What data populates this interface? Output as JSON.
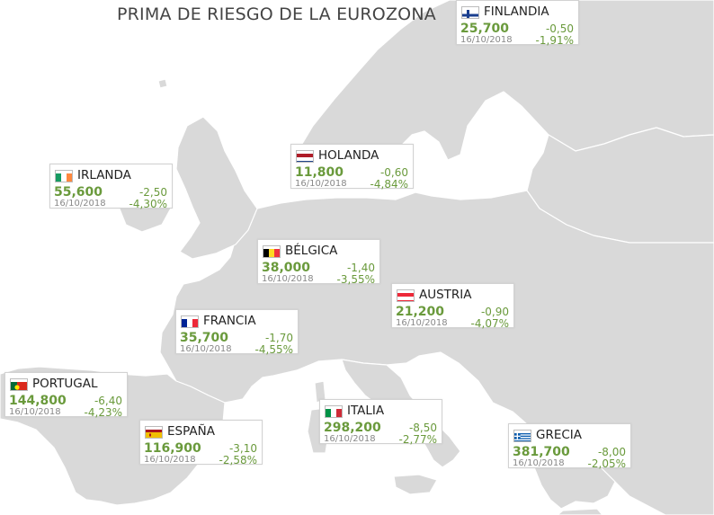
{
  "title": "PRIMA DE RIESGO DE LA EUROZONA",
  "colors": {
    "sea": "#ffffff",
    "land": "#d9d9d9",
    "border": "#ffffff",
    "value": "#6a9a3c",
    "card_border": "#d2d2d2"
  },
  "countries": [
    {
      "name": "FINLANDIA",
      "flag_icon": "finland-flag-icon",
      "value": "25,700",
      "change": "-0,50",
      "date": "16/10/2018",
      "pct": "-1,91%"
    },
    {
      "name": "HOLANDA",
      "flag_icon": "netherlands-flag-icon",
      "value": "11,800",
      "change": "-0,60",
      "date": "16/10/2018",
      "pct": "-4,84%"
    },
    {
      "name": "IRLANDA",
      "flag_icon": "ireland-flag-icon",
      "value": "55,600",
      "change": "-2,50",
      "date": "16/10/2018",
      "pct": "-4,30%"
    },
    {
      "name": "BÉLGICA",
      "flag_icon": "belgium-flag-icon",
      "value": "38,000",
      "change": "-1,40",
      "date": "16/10/2018",
      "pct": "-3,55%"
    },
    {
      "name": "AUSTRIA",
      "flag_icon": "austria-flag-icon",
      "value": "21,200",
      "change": "-0,90",
      "date": "16/10/2018",
      "pct": "-4,07%"
    },
    {
      "name": "FRANCIA",
      "flag_icon": "france-flag-icon",
      "value": "35,700",
      "change": "-1,70",
      "date": "16/10/2018",
      "pct": "-4,55%"
    },
    {
      "name": "PORTUGAL",
      "flag_icon": "portugal-flag-icon",
      "value": "144,800",
      "change": "-6,40",
      "date": "16/10/2018",
      "pct": "-4,23%"
    },
    {
      "name": "ITALIA",
      "flag_icon": "italy-flag-icon",
      "value": "298,200",
      "change": "-8,50",
      "date": "16/10/2018",
      "pct": "-2,77%"
    },
    {
      "name": "ESPAÑA",
      "flag_icon": "spain-flag-icon",
      "value": "116,900",
      "change": "-3,10",
      "date": "16/10/2018",
      "pct": "-2,58%"
    },
    {
      "name": "GRECIA",
      "flag_icon": "greece-flag-icon",
      "value": "381,700",
      "change": "-8,00",
      "date": "16/10/2018",
      "pct": "-2,05%"
    }
  ]
}
